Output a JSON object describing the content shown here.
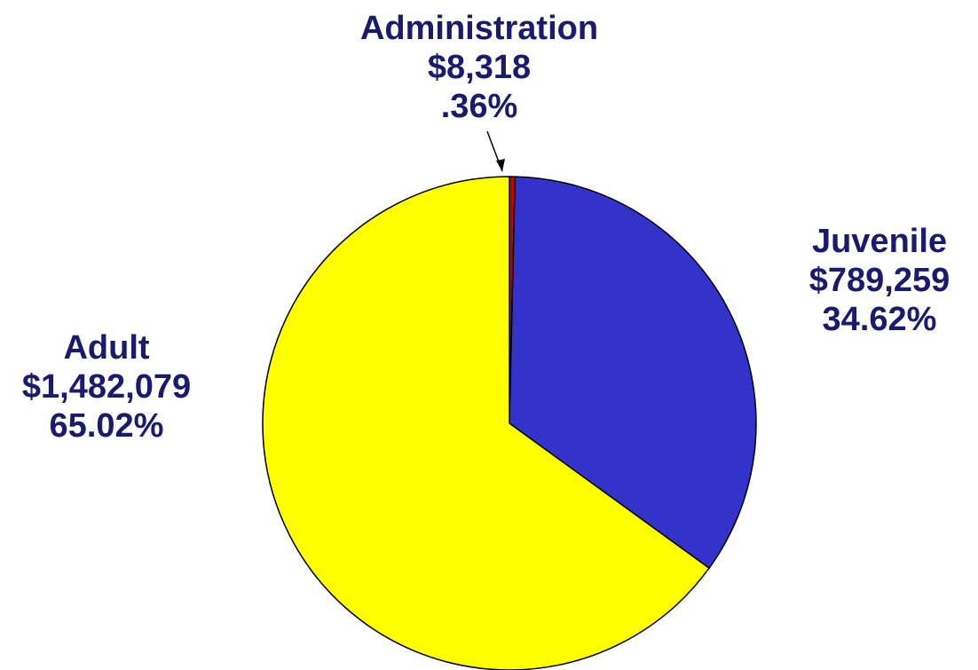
{
  "chart_data": {
    "type": "pie",
    "title": "",
    "start_angle_deg": 0,
    "direction": "clockwise",
    "slices": [
      {
        "name": "Administration",
        "value": 8318,
        "value_label": "$8,318",
        "percent_label": ".36%",
        "color": "#cc0000"
      },
      {
        "name": "Juvenile",
        "value": 789259,
        "value_label": "$789,259",
        "percent_label": "34.62%",
        "color": "#3333cc"
      },
      {
        "name": "Adult",
        "value": 1482079,
        "value_label": "$1,482,079",
        "percent_label": "65.02%",
        "color": "#ffff00"
      }
    ],
    "outline_color": "#000000",
    "label_color": "#1a1a6e"
  }
}
